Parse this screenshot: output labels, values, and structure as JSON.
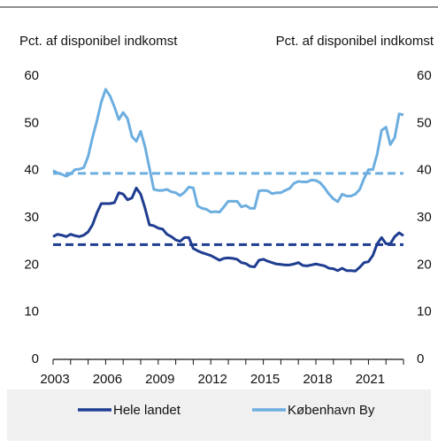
{
  "chart_data": {
    "type": "line",
    "ylabel": "Pct. af disponibel indkomst",
    "y2label": "Pct. af disponibel indkomst",
    "x": [
      2003,
      2003.25,
      2003.5,
      2003.75,
      2004,
      2004.25,
      2004.5,
      2004.75,
      2005,
      2005.25,
      2005.5,
      2005.75,
      2006,
      2006.25,
      2006.5,
      2006.75,
      2007,
      2007.25,
      2007.5,
      2007.75,
      2008,
      2008.25,
      2008.5,
      2008.75,
      2009,
      2009.25,
      2009.5,
      2009.75,
      2010,
      2010.25,
      2010.5,
      2010.75,
      2011,
      2011.25,
      2011.5,
      2011.75,
      2012,
      2012.25,
      2012.5,
      2012.75,
      2013,
      2013.25,
      2013.5,
      2013.75,
      2014,
      2014.25,
      2014.5,
      2014.75,
      2015,
      2015.25,
      2015.5,
      2015.75,
      2016,
      2016.25,
      2016.5,
      2016.75,
      2017,
      2017.25,
      2017.5,
      2017.75,
      2018,
      2018.25,
      2018.5,
      2018.75,
      2019,
      2019.25,
      2019.5,
      2019.75,
      2020,
      2020.25,
      2020.5,
      2020.75,
      2021,
      2021.25,
      2021.5,
      2021.75,
      2022,
      2022.25,
      2022.5,
      2022.75,
      2023
    ],
    "series": [
      {
        "name": "Hele landet",
        "color": "#1f3d91",
        "values": [
          26,
          26.5,
          26.3,
          26.0,
          26.5,
          26.2,
          26.0,
          26.3,
          27.0,
          28.5,
          31.0,
          33.0,
          33.0,
          33.0,
          33.2,
          35.3,
          35.0,
          33.8,
          34.2,
          36.3,
          35.0,
          32.0,
          28.5,
          28.3,
          27.8,
          27.6,
          26.5,
          26.0,
          25.3,
          25.0,
          25.8,
          25.8,
          23.5,
          23.0,
          22.6,
          22.3,
          22.0,
          21.5,
          21.0,
          21.4,
          21.5,
          21.4,
          21.2,
          20.5,
          20.3,
          19.7,
          19.6,
          21.0,
          21.2,
          20.8,
          20.5,
          20.2,
          20.1,
          20.0,
          20.0,
          20.2,
          20.5,
          19.9,
          19.8,
          20.0,
          20.2,
          20.0,
          19.8,
          19.3,
          19.2,
          18.8,
          19.3,
          18.8,
          18.8,
          18.7,
          19.5,
          20.5,
          20.7,
          22.0,
          24.5,
          25.8,
          24.5,
          24.5,
          26.0,
          26.8,
          26.2
        ]
      },
      {
        "name": "København By",
        "color": "#6caee0",
        "axis": "y2",
        "values": [
          40.0,
          39.5,
          39.2,
          38.8,
          39.3,
          40.2,
          40.3,
          40.6,
          43.0,
          47.0,
          50.5,
          54.5,
          57.2,
          55.8,
          53.5,
          50.8,
          52.3,
          51.0,
          47.2,
          46.2,
          48.3,
          45.0,
          40.5,
          36.0,
          35.8,
          35.8,
          36.0,
          35.5,
          35.3,
          34.7,
          35.4,
          36.5,
          36.3,
          32.5,
          32.0,
          31.8,
          31.2,
          31.3,
          31.2,
          32.3,
          33.5,
          33.5,
          33.5,
          32.3,
          32.6,
          32.0,
          32.0,
          35.7,
          35.8,
          35.7,
          35.1,
          35.3,
          35.3,
          35.8,
          36.2,
          37.3,
          37.7,
          37.6,
          37.6,
          38.0,
          37.9,
          37.4,
          36.3,
          35.0,
          34.0,
          33.4,
          35.0,
          34.6,
          34.6,
          35.0,
          36.0,
          38.3,
          40.2,
          40.2,
          43.5,
          48.5,
          49.2,
          45.5,
          47.0,
          52.0,
          51.8
        ]
      }
    ],
    "reference_lines": [
      {
        "value": 24.3,
        "color": "#1f3d91"
      },
      {
        "value": 39.4,
        "color": "#6caee0"
      }
    ],
    "xlim": [
      2003,
      2023
    ],
    "xticks": [
      2003,
      2006,
      2009,
      2012,
      2015,
      2018,
      2021
    ],
    "xminorticks": [
      2003,
      2004,
      2005,
      2006,
      2007,
      2008,
      2009,
      2010,
      2011,
      2012,
      2013,
      2014,
      2015,
      2016,
      2017,
      2018,
      2019,
      2020,
      2021,
      2022,
      2023
    ],
    "ylim": [
      0,
      60
    ],
    "yticks": [
      0,
      10,
      20,
      30,
      40,
      50,
      60
    ],
    "y2lim": [
      0,
      60
    ],
    "y2ticks": [
      0,
      10,
      20,
      30,
      40,
      50,
      60
    ],
    "grid": false
  }
}
